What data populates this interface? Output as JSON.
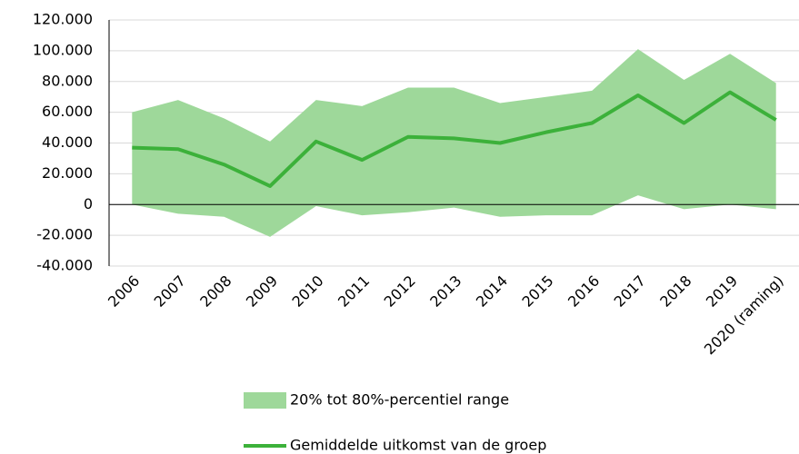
{
  "chart_data": {
    "type": "line",
    "categories": [
      "2006",
      "2007",
      "2008",
      "2009",
      "2010",
      "2011",
      "2012",
      "2013",
      "2014",
      "2015",
      "2016",
      "2017",
      "2018",
      "2019",
      "2020 (raming)"
    ],
    "series": [
      {
        "name": "20% tot 80%-percentiel range",
        "type": "range",
        "color": "#9ed89a",
        "upper": [
          60000,
          68000,
          56000,
          41000,
          68000,
          64000,
          76000,
          76000,
          66000,
          70000,
          74000,
          101000,
          81000,
          98000,
          79000
        ],
        "lower": [
          0,
          -6000,
          -8000,
          -21000,
          -1000,
          -7000,
          -5000,
          -2000,
          -8000,
          -7000,
          -7000,
          6000,
          -3000,
          0,
          -3000
        ]
      },
      {
        "name": "Gemiddelde uitkomst van de groep",
        "color": "#3cb13a",
        "values": [
          37000,
          36000,
          26000,
          12000,
          41000,
          29000,
          44000,
          43000,
          40000,
          47000,
          53000,
          71000,
          53000,
          73000,
          55000
        ]
      }
    ],
    "ylim": [
      -40000,
      120000
    ],
    "yticks": [
      {
        "value": -40000,
        "label": "-40.000"
      },
      {
        "value": -20000,
        "label": "-20.000"
      },
      0,
      {
        "value": 20000,
        "label": "20.000"
      },
      {
        "value": 40000,
        "label": "40.000"
      },
      {
        "value": 60000,
        "label": "60.000"
      },
      {
        "value": 80000,
        "label": "80.000"
      },
      {
        "value": 100000,
        "label": "100.000"
      },
      {
        "value": 120000,
        "label": "120.000"
      }
    ],
    "grid": true
  }
}
